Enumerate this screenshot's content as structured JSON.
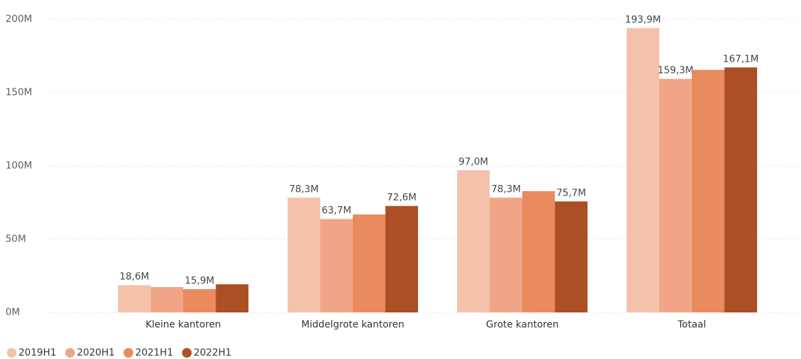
{
  "chart_data": {
    "type": "bar",
    "categories": [
      "Kleine kantoren",
      "Middelgrote kantoren",
      "Grote kantoren",
      "Totaal"
    ],
    "series": [
      {
        "name": "2019H1",
        "color": "#f4c2aa",
        "values": [
          18.6,
          78.3,
          97.0,
          193.9
        ],
        "value_labels": [
          "18,6M",
          "78,3M",
          "97,0M",
          "193,9M"
        ]
      },
      {
        "name": "2020H1",
        "color": "#f0a686",
        "values": [
          17.3,
          63.7,
          78.3,
          159.3
        ],
        "value_labels": [
          null,
          "63,7M",
          "78,3M",
          "159,3M"
        ]
      },
      {
        "name": "2021H1",
        "color": "#e98a5f",
        "values": [
          15.9,
          66.8,
          82.7,
          165.4
        ],
        "value_labels": [
          "15,9M",
          null,
          null,
          null
        ]
      },
      {
        "name": "2022H1",
        "color": "#ad4f26",
        "values": [
          19.2,
          72.6,
          75.7,
          167.1
        ],
        "value_labels": [
          null,
          "72,6M",
          "75,7M",
          "167,1M"
        ]
      }
    ],
    "ylim": [
      0,
      200
    ],
    "yticks": [
      {
        "value": 0,
        "label": "0M"
      },
      {
        "value": 50,
        "label": "50M"
      },
      {
        "value": 100,
        "label": "100M"
      },
      {
        "value": 150,
        "label": "150M"
      },
      {
        "value": 200,
        "label": "200M"
      }
    ],
    "grid": true,
    "legend": "bottom-left"
  }
}
